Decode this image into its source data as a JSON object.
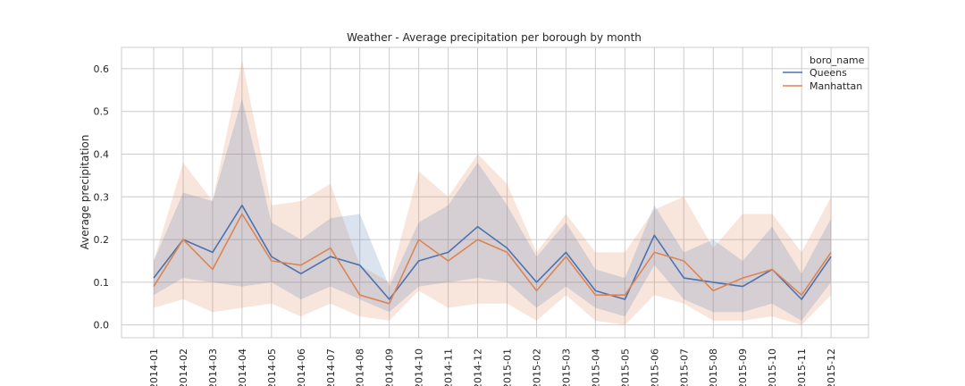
{
  "chart_data": {
    "type": "line",
    "title": "Weather - Average precipitation per borough by month",
    "xlabel": "",
    "ylabel": "Average precipitation",
    "ylim": [
      -0.03,
      0.65
    ],
    "yticks": [
      "0.0",
      "0.1",
      "0.2",
      "0.3",
      "0.4",
      "0.5",
      "0.6"
    ],
    "categories": [
      "2014-01",
      "2014-02",
      "2014-03",
      "2014-04",
      "2014-05",
      "2014-06",
      "2014-07",
      "2014-08",
      "2014-09",
      "2014-10",
      "2014-11",
      "2014-12",
      "2015-01",
      "2015-02",
      "2015-03",
      "2015-04",
      "2015-05",
      "2015-06",
      "2015-07",
      "2015-08",
      "2015-09",
      "2015-10",
      "2015-11",
      "2015-12"
    ],
    "grid": true,
    "legend": {
      "title": "boro_name",
      "placement": "top-right"
    },
    "series": [
      {
        "name": "Queens",
        "color": "#4c72b0",
        "values": [
          0.11,
          0.2,
          0.17,
          0.28,
          0.16,
          0.12,
          0.16,
          0.14,
          0.06,
          0.15,
          0.17,
          0.23,
          0.18,
          0.1,
          0.17,
          0.08,
          0.06,
          0.21,
          0.11,
          0.1,
          0.09,
          0.13,
          0.06,
          0.16
        ],
        "ci_lower": [
          0.07,
          0.11,
          0.1,
          0.09,
          0.1,
          0.06,
          0.09,
          0.06,
          0.03,
          0.09,
          0.1,
          0.11,
          0.1,
          0.04,
          0.09,
          0.04,
          0.02,
          0.14,
          0.06,
          0.03,
          0.03,
          0.05,
          0.01,
          0.1
        ],
        "ci_upper": [
          0.15,
          0.31,
          0.29,
          0.53,
          0.24,
          0.2,
          0.25,
          0.26,
          0.09,
          0.24,
          0.28,
          0.38,
          0.28,
          0.16,
          0.24,
          0.13,
          0.11,
          0.28,
          0.17,
          0.2,
          0.15,
          0.23,
          0.12,
          0.25
        ]
      },
      {
        "name": "Manhattan",
        "color": "#dd8452",
        "values": [
          0.09,
          0.2,
          0.13,
          0.26,
          0.15,
          0.14,
          0.18,
          0.07,
          0.05,
          0.2,
          0.15,
          0.2,
          0.17,
          0.08,
          0.16,
          0.07,
          0.07,
          0.17,
          0.15,
          0.08,
          0.11,
          0.13,
          0.07,
          0.17
        ],
        "ci_lower": [
          0.04,
          0.06,
          0.03,
          0.04,
          0.05,
          0.02,
          0.05,
          0.02,
          0.01,
          0.08,
          0.04,
          0.05,
          0.05,
          0.01,
          0.07,
          0.01,
          0.0,
          0.07,
          0.05,
          0.01,
          0.01,
          0.02,
          0.0,
          0.07
        ],
        "ci_upper": [
          0.15,
          0.38,
          0.29,
          0.62,
          0.28,
          0.29,
          0.33,
          0.14,
          0.1,
          0.36,
          0.3,
          0.4,
          0.33,
          0.17,
          0.26,
          0.17,
          0.17,
          0.27,
          0.3,
          0.18,
          0.26,
          0.26,
          0.17,
          0.3
        ]
      }
    ]
  }
}
